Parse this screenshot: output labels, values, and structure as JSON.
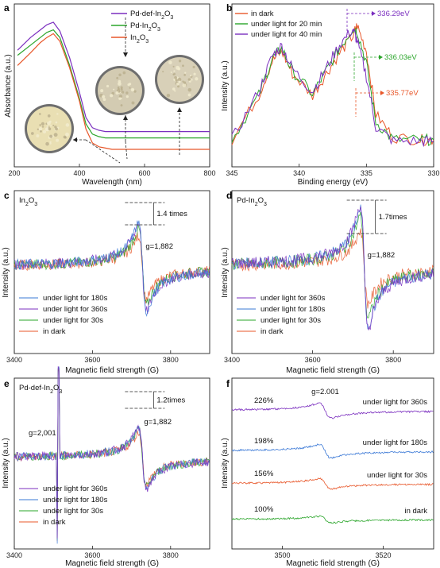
{
  "chart_data": [
    {
      "panel": "a",
      "type": "line",
      "xlabel": "Wavelength (nm)",
      "ylabel": "Absorbance (a.u.)",
      "xlim": [
        200,
        800
      ],
      "xticks": [
        "200",
        "400",
        "600",
        "800"
      ],
      "legend_position": "top-right",
      "series": [
        {
          "name": "Pd-def-In2O3",
          "color": "#7b2fbf",
          "x": [
            210,
            250,
            280,
            300,
            320,
            340,
            370,
            400,
            420,
            440,
            460,
            480,
            500,
            540,
            600,
            700,
            800
          ],
          "y": [
            0.78,
            0.88,
            0.94,
            0.98,
            1.0,
            0.93,
            0.72,
            0.45,
            0.25,
            0.17,
            0.15,
            0.14,
            0.14,
            0.14,
            0.14,
            0.14,
            0.14
          ]
        },
        {
          "name": "Pd-In2O3",
          "color": "#2aa52a",
          "x": [
            210,
            250,
            280,
            300,
            320,
            340,
            370,
            400,
            420,
            440,
            460,
            480,
            500,
            540,
            600,
            700,
            800
          ],
          "y": [
            0.74,
            0.82,
            0.88,
            0.92,
            0.94,
            0.88,
            0.66,
            0.4,
            0.2,
            0.12,
            0.1,
            0.09,
            0.09,
            0.09,
            0.09,
            0.09,
            0.09
          ]
        },
        {
          "name": "In2O3",
          "color": "#e8572a",
          "x": [
            210,
            250,
            280,
            300,
            320,
            340,
            370,
            400,
            420,
            440,
            460,
            480,
            500,
            540,
            600,
            700,
            800
          ],
          "y": [
            0.66,
            0.76,
            0.84,
            0.88,
            0.91,
            0.85,
            0.64,
            0.38,
            0.16,
            0.05,
            0.02,
            0.01,
            0.0,
            0.0,
            0.0,
            0.0,
            0.0
          ]
        }
      ],
      "labels": {
        "series": [
          "Pd-def-In",
          "Pd-In",
          "In"
        ],
        "subscript": "2",
        "suffix": "O",
        "sub3": "3"
      }
    },
    {
      "panel": "b",
      "type": "line",
      "xlabel": "Binding energy (eV)",
      "ylabel": "Intensity (a.u.)",
      "xlim": [
        345,
        330
      ],
      "xticks": [
        "345",
        "340",
        "335",
        "330"
      ],
      "legend_position": "top-left",
      "series": [
        {
          "name": "in dark",
          "color": "#e8572a",
          "x": [
            345,
            343,
            342,
            341.3,
            340.5,
            339,
            338,
            337,
            336,
            335.7,
            335,
            334.3,
            333,
            331,
            330
          ],
          "y": [
            0.1,
            0.45,
            0.72,
            0.8,
            0.62,
            0.45,
            0.62,
            0.78,
            0.92,
            1.0,
            0.8,
            0.3,
            0.12,
            0.1,
            0.1
          ]
        },
        {
          "name": "under light for 20 min",
          "color": "#2aa52a",
          "x": [
            345,
            343,
            342,
            341.3,
            340.5,
            339,
            338,
            337,
            336,
            335.7,
            335,
            334.3,
            333,
            331,
            330
          ],
          "y": [
            0.1,
            0.45,
            0.74,
            0.82,
            0.64,
            0.46,
            0.64,
            0.82,
            0.98,
            0.96,
            0.7,
            0.24,
            0.1,
            0.1,
            0.1
          ]
        },
        {
          "name": "under light for 40 min",
          "color": "#7b2fbf",
          "x": [
            345,
            343,
            342,
            341.3,
            340.5,
            339,
            338,
            337,
            336,
            335.7,
            335,
            334.3,
            333,
            331,
            330
          ],
          "y": [
            0.1,
            0.48,
            0.76,
            0.84,
            0.66,
            0.48,
            0.66,
            0.85,
            0.97,
            0.88,
            0.6,
            0.2,
            0.09,
            0.09,
            0.09
          ]
        }
      ],
      "annotations": [
        {
          "text": "336.29eV",
          "color": "#7b2fbf"
        },
        {
          "text": "336.03eV",
          "color": "#2aa52a"
        },
        {
          "text": "335.77eV",
          "color": "#e8572a"
        }
      ]
    },
    {
      "panel": "c",
      "type": "line",
      "title": "In2O3",
      "xlabel": "Magnetic field strength (G)",
      "ylabel": "Intensity (a.u.)",
      "xlim": [
        3400,
        3900
      ],
      "xticks": [
        "3400",
        "3600",
        "3800"
      ],
      "legend_position": "bottom-left",
      "annotations": [
        {
          "text": "1.4 times"
        },
        {
          "text": "g=1,882"
        }
      ],
      "series": [
        {
          "name": "under light for 180s",
          "color": "#3a78d6",
          "scale": 1.4
        },
        {
          "name": "under light for 360s",
          "color": "#7b2fbf",
          "scale": 1.4
        },
        {
          "name": "under light for 30s",
          "color": "#2aa52a",
          "scale": 1.2
        },
        {
          "name": "in dark",
          "color": "#e8572a",
          "scale": 1.0
        }
      ]
    },
    {
      "panel": "d",
      "type": "line",
      "title": "Pd-In2O3",
      "xlabel": "Magnetic field strength (G)",
      "ylabel": "Intensity (a.u.)",
      "xlim": [
        3400,
        3900
      ],
      "xticks": [
        "3400",
        "3600",
        "3800"
      ],
      "legend_position": "bottom-left",
      "annotations": [
        {
          "text": "1.7times"
        },
        {
          "text": "g=1,882"
        }
      ],
      "series": [
        {
          "name": "under light for 360s",
          "color": "#7b2fbf",
          "scale": 1.7
        },
        {
          "name": "under light for 180s",
          "color": "#3a78d6",
          "scale": 1.6
        },
        {
          "name": "under light for 30s",
          "color": "#2aa52a",
          "scale": 1.4
        },
        {
          "name": "in dark",
          "color": "#e8572a",
          "scale": 1.0
        }
      ]
    },
    {
      "panel": "e",
      "type": "line",
      "title": "Pd-def-In2O3",
      "xlabel": "Magnetic field strength (G)",
      "ylabel": "Intensity (a.u.)",
      "xlim": [
        3400,
        3900
      ],
      "xticks": [
        "3400",
        "3600",
        "3800"
      ],
      "legend_position": "bottom-left",
      "annotations": [
        {
          "text": "1.2times"
        },
        {
          "text": "g=2,001"
        },
        {
          "text": "g=1,882"
        }
      ],
      "series": [
        {
          "name": "under light for 360s",
          "color": "#7b2fbf",
          "scale": 1.2
        },
        {
          "name": "under light for 180s",
          "color": "#3a78d6",
          "scale": 1.15
        },
        {
          "name": "under light for 30s",
          "color": "#2aa52a",
          "scale": 1.1
        },
        {
          "name": "in dark",
          "color": "#e8572a",
          "scale": 1.0
        }
      ]
    },
    {
      "panel": "f",
      "type": "line",
      "xlabel": "Magnetic field strength (G)",
      "ylabel": "Intensity (a.u.)",
      "xlim": [
        3490,
        3530
      ],
      "xticks": [
        "3500",
        "3520"
      ],
      "annotations": [
        {
          "text": "g=2.001"
        }
      ],
      "series": [
        {
          "name": "under light for 360s",
          "color": "#7b2fbf",
          "percent": "226%",
          "value": 226
        },
        {
          "name": "under light for 180s",
          "color": "#3a78d6",
          "percent": "198%",
          "value": 198
        },
        {
          "name": "under light for 30s",
          "color": "#e8572a",
          "percent": "156%",
          "value": 156
        },
        {
          "name": "in dark",
          "color": "#2aa52a",
          "percent": "100%",
          "value": 100
        }
      ]
    }
  ],
  "panel_labels": [
    "a",
    "b",
    "c",
    "d",
    "e",
    "f"
  ]
}
